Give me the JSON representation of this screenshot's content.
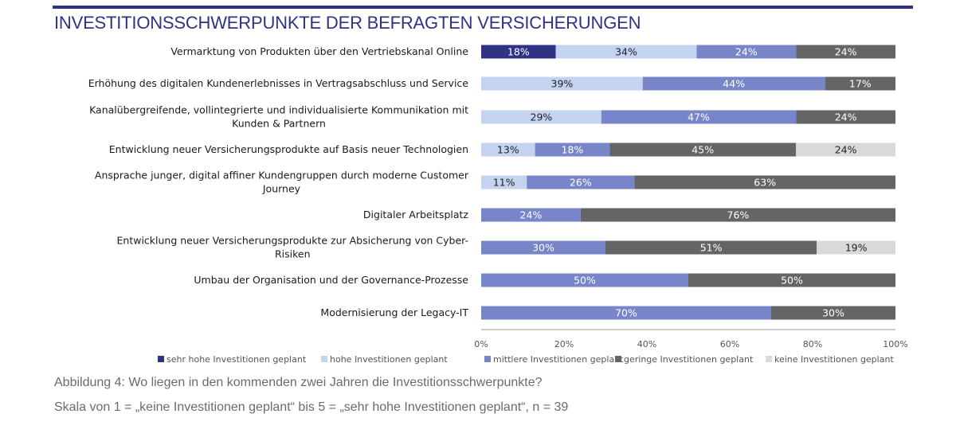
{
  "header": {
    "title": "INVESTITIONSSCHWERPUNKTE DER BEFRAGTEN VERSICHERUNGEN"
  },
  "caption": {
    "line1": "Abbildung 4: Wo liegen in den kommenden zwei Jahren die Investitionsschwerpunkte?",
    "line2": "Skala von 1 = „keine Investitionen geplant“ bis 5 = „sehr hohe Investitionen geplant“, n = 39"
  },
  "chart_data": {
    "type": "bar",
    "orientation": "horizontal",
    "stacked": true,
    "percent_stacked": true,
    "title": "INVESTITIONSSCHWERPUNKTE DER BEFRAGTEN VERSICHERUNGEN",
    "xlabel": "",
    "ylabel": "",
    "xlim": [
      0,
      100
    ],
    "x_ticks": [
      "0%",
      "20%",
      "40%",
      "60%",
      "80%",
      "100%"
    ],
    "grid": false,
    "legend_position": "bottom",
    "categories": [
      [
        "Vermarktung von Produkten über den Vertriebskanal Online"
      ],
      [
        "Erhöhung des digitalen Kundenerlebnisses in Vertragsabschluss und Service"
      ],
      [
        "Kanalübergreifende, vollintegrierte und individualisierte Kommunikation mit",
        "Kunden &  Partnern"
      ],
      [
        "Entwicklung neuer Versicherungsprodukte auf Basis neuer Technologien"
      ],
      [
        "Ansprache junger, digital affiner Kundengruppen durch moderne Customer",
        "Journey"
      ],
      [
        "Digitaler Arbeitsplatz"
      ],
      [
        "Entwicklung neuer Versicherungsprodukte zur Absicherung von Cyber-",
        "Risiken"
      ],
      [
        "Umbau der Organisation und der Governance-Prozesse"
      ],
      [
        "Modernisierung der Legacy-IT"
      ]
    ],
    "series": [
      {
        "name": "sehr hohe Investitionen geplant",
        "color": "#2e3383",
        "label_color": "#ffffff",
        "values": [
          18,
          0,
          0,
          0,
          0,
          0,
          0,
          0,
          0
        ]
      },
      {
        "name": "hohe Investitionen geplant",
        "color": "#c3d3f0",
        "label_color": "#222222",
        "values": [
          34,
          39,
          29,
          13,
          11,
          0,
          0,
          0,
          0
        ]
      },
      {
        "name": "mittlere Investitionen geplant",
        "color": "#7985c9",
        "label_color": "#ffffff",
        "values": [
          24,
          44,
          47,
          18,
          26,
          24,
          30,
          50,
          70
        ]
      },
      {
        "name": "geringe Investitionen geplant",
        "color": "#646666",
        "label_color": "#ffffff",
        "values": [
          24,
          17,
          24,
          45,
          63,
          76,
          51,
          50,
          30
        ]
      },
      {
        "name": "keine Investitionen geplant",
        "color": "#d7d9da",
        "label_color": "#222222",
        "values": [
          0,
          0,
          0,
          24,
          0,
          0,
          19,
          0,
          0
        ]
      }
    ]
  }
}
